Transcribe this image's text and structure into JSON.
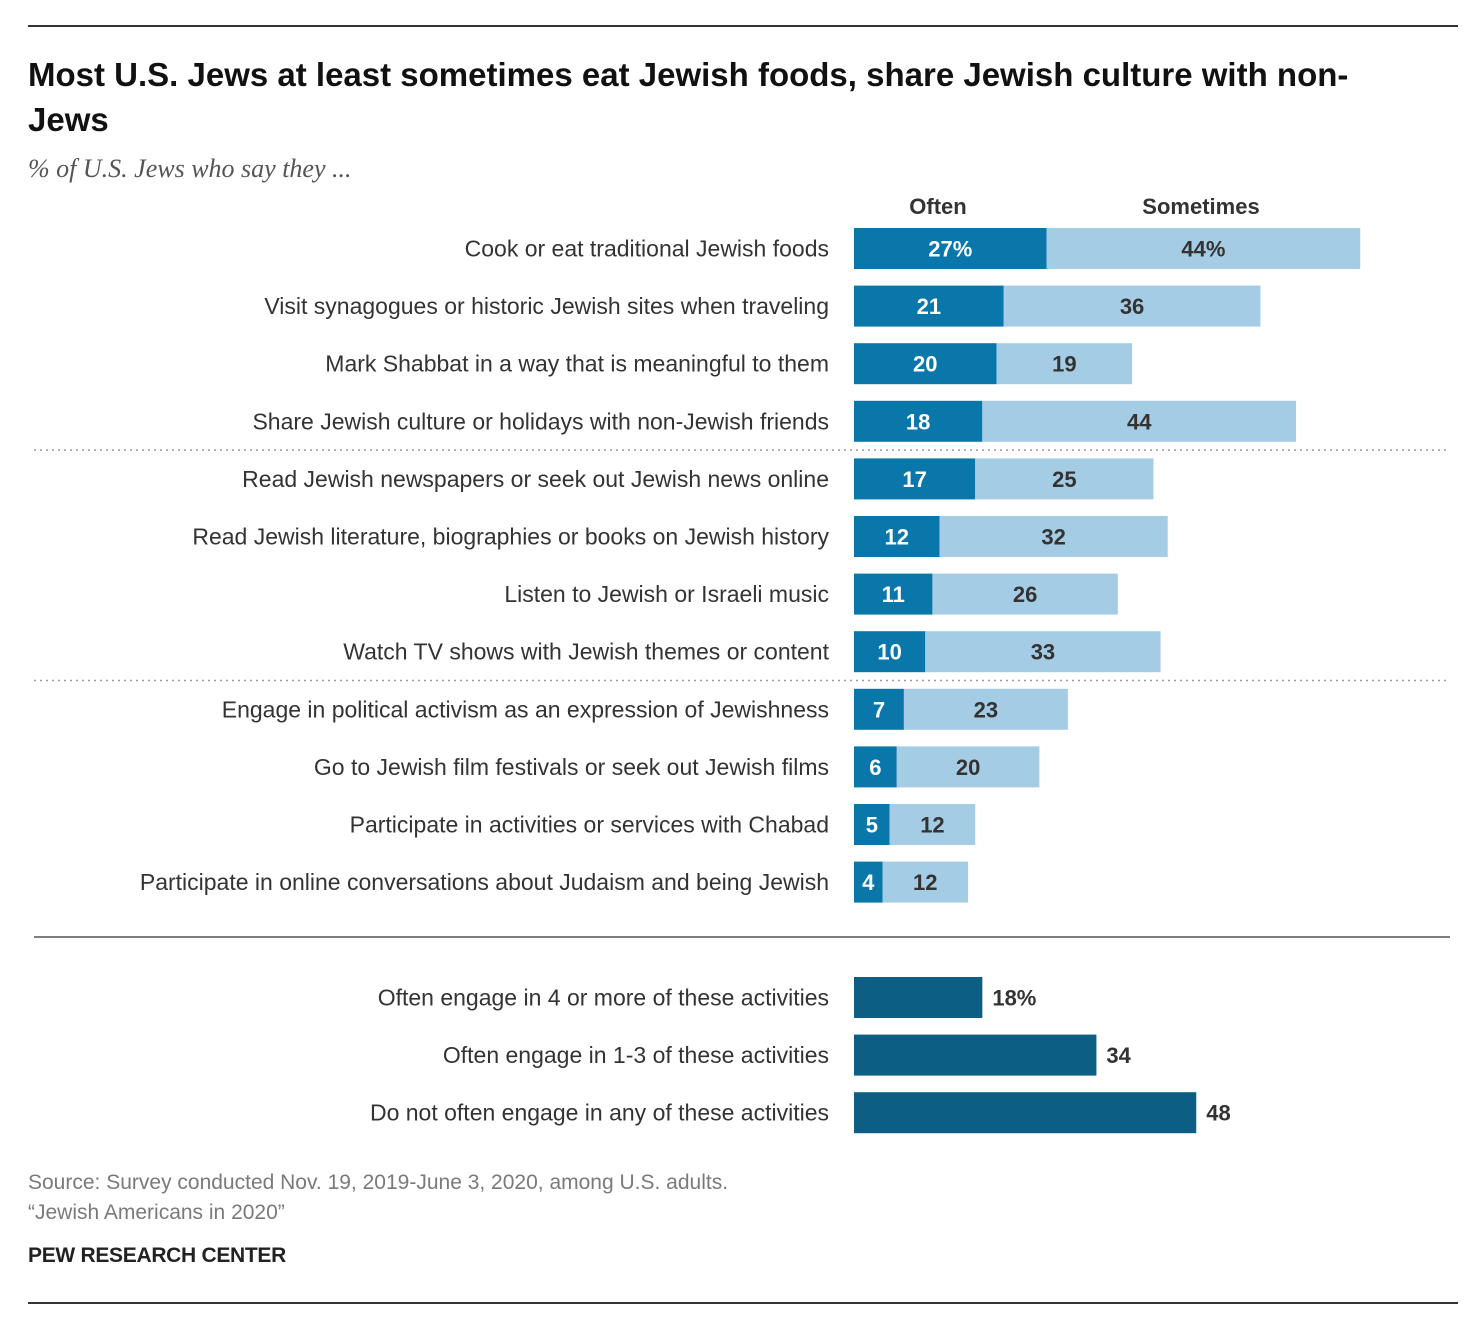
{
  "title": "Most U.S. Jews at least sometimes eat Jewish foods, share Jewish culture with non-Jews",
  "subtitle": "% of U.S. Jews who say they ...",
  "source_line1": "Source: Survey conducted Nov. 19, 2019-June 3, 2020, among U.S. adults.",
  "source_line2": "“Jewish Americans in 2020”",
  "organization": "PEW RESEARCH CENTER",
  "colors": {
    "often": "#0a77aa",
    "sometimes": "#a4cce4",
    "summary": "#0c5e84"
  },
  "chart_data": [
    {
      "type": "bar",
      "orientation": "horizontal",
      "stacked": true,
      "series": [
        {
          "name": "Often",
          "values": [
            27,
            21,
            20,
            18,
            17,
            12,
            11,
            10,
            7,
            6,
            5,
            4
          ]
        },
        {
          "name": "Sometimes",
          "values": [
            44,
            36,
            19,
            44,
            25,
            32,
            26,
            33,
            23,
            20,
            12,
            12
          ]
        }
      ],
      "categories": [
        "Cook or eat traditional Jewish foods",
        "Visit synagogues or historic Jewish sites when traveling",
        "Mark Shabbat in a way that is meaningful to them",
        "Share Jewish culture or holidays with non-Jewish friends",
        "Read Jewish newspapers or seek out Jewish news online",
        "Read Jewish literature, biographies or books on Jewish history",
        "Listen to Jewish or Israeli music",
        "Watch TV shows with Jewish themes or content",
        "Engage in political activism as an expression of Jewishness",
        "Go to Jewish film festivals or seek out Jewish films",
        "Participate in activities or services with Chabad",
        "Participate in online conversations about Judaism and being Jewish"
      ],
      "group_dividers_after": [
        3,
        7
      ],
      "first_value_suffix": "%"
    },
    {
      "type": "bar",
      "orientation": "horizontal",
      "categories": [
        "Often engage in 4 or more of these activities",
        "Often engage in 1-3 of these activities",
        "Do not often engage in any of these activities"
      ],
      "values": [
        18,
        34,
        48
      ],
      "first_value_suffix": "%"
    }
  ]
}
